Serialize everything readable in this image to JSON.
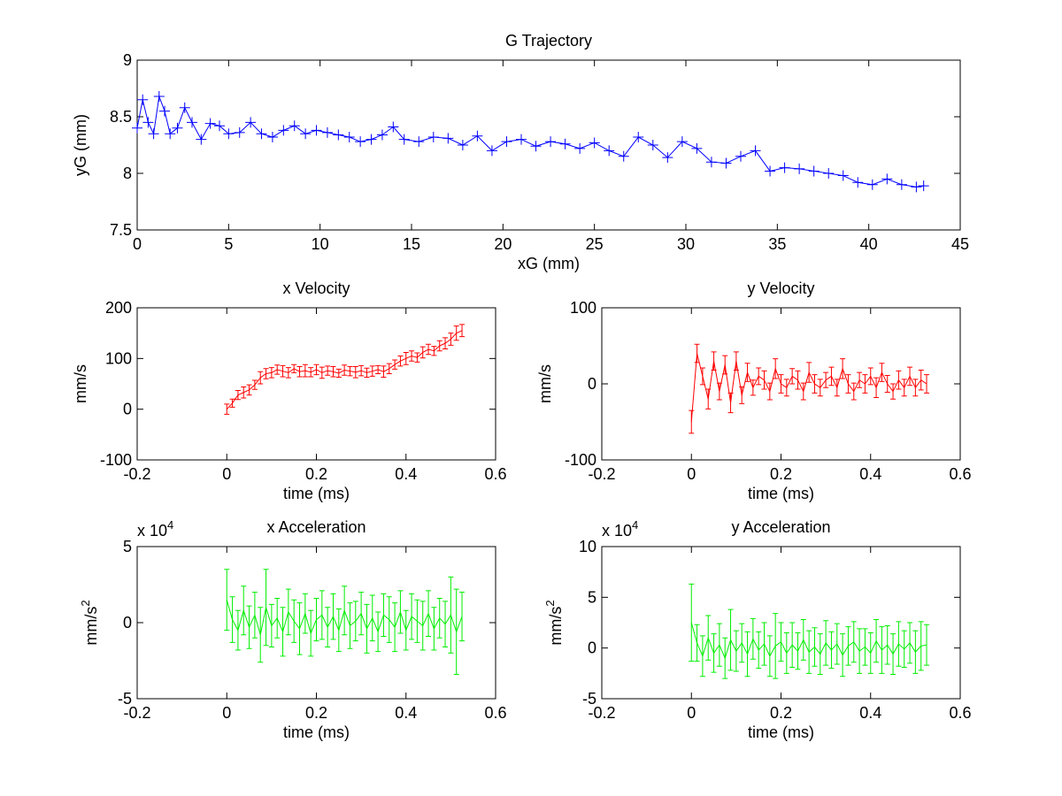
{
  "chart_data": [
    {
      "type": "line",
      "title": "G Trajectory",
      "xlabel": "xG (mm)",
      "ylabel": "yG (mm)",
      "marker": "+",
      "color": "#0000ff",
      "x": [
        0,
        0.3,
        0.6,
        0.9,
        1.2,
        1.5,
        1.8,
        2.2,
        2.6,
        3.0,
        3.5,
        4.0,
        4.5,
        5.0,
        5.6,
        6.2,
        6.8,
        7.4,
        8.0,
        8.6,
        9.2,
        9.8,
        10.4,
        11.0,
        11.6,
        12.2,
        12.8,
        13.4,
        14.0,
        14.6,
        15.4,
        16.2,
        17.0,
        17.8,
        18.6,
        19.4,
        20.2,
        21.0,
        21.8,
        22.6,
        23.4,
        24.2,
        25.0,
        25.8,
        26.6,
        27.4,
        28.2,
        29.0,
        29.8,
        30.6,
        31.4,
        32.2,
        33.0,
        33.8,
        34.6,
        35.4,
        36.2,
        37.0,
        37.8,
        38.6,
        39.4,
        40.2,
        41.0,
        41.8,
        42.6,
        43.0
      ],
      "values": [
        8.4,
        8.65,
        8.45,
        8.35,
        8.68,
        8.55,
        8.35,
        8.4,
        8.58,
        8.45,
        8.3,
        8.44,
        8.42,
        8.35,
        8.36,
        8.45,
        8.35,
        8.32,
        8.38,
        8.42,
        8.35,
        8.38,
        8.36,
        8.34,
        8.32,
        8.28,
        8.3,
        8.34,
        8.41,
        8.3,
        8.28,
        8.32,
        8.31,
        8.25,
        8.33,
        8.2,
        8.28,
        8.3,
        8.24,
        8.28,
        8.26,
        8.22,
        8.27,
        8.2,
        8.15,
        8.32,
        8.25,
        8.14,
        8.28,
        8.22,
        8.1,
        8.09,
        8.15,
        8.2,
        8.02,
        8.05,
        8.04,
        8.02,
        8.0,
        7.98,
        7.92,
        7.9,
        7.95,
        7.9,
        7.88,
        7.89
      ],
      "xlim": [
        0,
        45
      ],
      "xticks": [
        0,
        5,
        10,
        15,
        20,
        25,
        30,
        35,
        40,
        45
      ],
      "ylim": [
        7.5,
        9
      ],
      "yticks": [
        7.5,
        8,
        8.5,
        9
      ]
    },
    {
      "type": "errorbar",
      "title": "x Velocity",
      "xlabel": "time (ms)",
      "ylabel": "mm/s",
      "color": "#ff0000",
      "x": [
        0,
        0.0125,
        0.025,
        0.0375,
        0.05,
        0.0625,
        0.075,
        0.0875,
        0.1,
        0.1125,
        0.125,
        0.1375,
        0.15,
        0.1625,
        0.175,
        0.1875,
        0.2,
        0.2125,
        0.225,
        0.2375,
        0.25,
        0.2625,
        0.275,
        0.2875,
        0.3,
        0.3125,
        0.325,
        0.3375,
        0.35,
        0.3625,
        0.375,
        0.3875,
        0.4,
        0.4125,
        0.425,
        0.4375,
        0.45,
        0.4625,
        0.475,
        0.4875,
        0.5,
        0.5125,
        0.525
      ],
      "values": [
        0,
        12,
        28,
        33,
        38,
        48,
        62,
        70,
        72,
        78,
        75,
        72,
        80,
        74,
        76,
        73,
        78,
        72,
        76,
        74,
        71,
        77,
        75,
        73,
        76,
        72,
        75,
        78,
        74,
        80,
        88,
        95,
        100,
        105,
        102,
        112,
        118,
        115,
        125,
        130,
        138,
        150,
        155
      ],
      "errors": [
        10,
        8,
        9,
        11,
        10,
        9,
        12,
        10,
        10,
        9,
        11,
        10,
        8,
        10,
        12,
        9,
        10,
        11,
        9,
        10,
        8,
        10,
        9,
        11,
        10,
        9,
        10,
        8,
        11,
        10,
        9,
        10,
        12,
        10,
        9,
        11,
        10,
        9,
        10,
        11,
        12,
        14,
        12
      ],
      "xlim": [
        -0.2,
        0.6
      ],
      "xticks": [
        -0.2,
        0,
        0.2,
        0.4,
        0.6
      ],
      "ylim": [
        -100,
        200
      ],
      "yticks": [
        -100,
        0,
        100,
        200
      ]
    },
    {
      "type": "errorbar",
      "title": "y Velocity",
      "xlabel": "time (ms)",
      "ylabel": "mm/s",
      "color": "#ff0000",
      "x": [
        0,
        0.0125,
        0.025,
        0.0375,
        0.05,
        0.0625,
        0.075,
        0.0875,
        0.1,
        0.1125,
        0.125,
        0.1375,
        0.15,
        0.1625,
        0.175,
        0.1875,
        0.2,
        0.2125,
        0.225,
        0.2375,
        0.25,
        0.2625,
        0.275,
        0.2875,
        0.3,
        0.3125,
        0.325,
        0.3375,
        0.35,
        0.3625,
        0.375,
        0.3875,
        0.4,
        0.4125,
        0.425,
        0.4375,
        0.45,
        0.4625,
        0.475,
        0.4875,
        0.5,
        0.5125,
        0.525
      ],
      "values": [
        -50,
        40,
        10,
        -20,
        30,
        -10,
        25,
        -25,
        30,
        -15,
        15,
        -5,
        10,
        5,
        -10,
        20,
        0,
        -5,
        10,
        5,
        -10,
        15,
        0,
        -5,
        5,
        10,
        -5,
        20,
        0,
        -10,
        5,
        0,
        10,
        -5,
        15,
        0,
        -10,
        5,
        -5,
        10,
        -5,
        5,
        0
      ],
      "errors": [
        15,
        12,
        11,
        13,
        12,
        11,
        12,
        13,
        12,
        11,
        12,
        10,
        11,
        12,
        11,
        13,
        12,
        11,
        10,
        12,
        11,
        13,
        12,
        11,
        10,
        12,
        11,
        13,
        12,
        11,
        10,
        12,
        11,
        13,
        12,
        11,
        10,
        12,
        11,
        12,
        11,
        13,
        12
      ],
      "xlim": [
        -0.2,
        0.6
      ],
      "xticks": [
        -0.2,
        0,
        0.2,
        0.4,
        0.6
      ],
      "ylim": [
        -100,
        100
      ],
      "yticks": [
        -100,
        0,
        100
      ]
    },
    {
      "type": "errorbar",
      "title": "x Acceleration",
      "xlabel": "time (ms)",
      "ylabel": "mm/s",
      "ylabel_sup": "2",
      "scale_label": "x 10",
      "scale_exponent": "4",
      "color": "#00ee00",
      "x": [
        0,
        0.0125,
        0.025,
        0.0375,
        0.05,
        0.0625,
        0.075,
        0.0875,
        0.1,
        0.1125,
        0.125,
        0.1375,
        0.15,
        0.1625,
        0.175,
        0.1875,
        0.2,
        0.2125,
        0.225,
        0.2375,
        0.25,
        0.2625,
        0.275,
        0.2875,
        0.3,
        0.3125,
        0.325,
        0.3375,
        0.35,
        0.3625,
        0.375,
        0.3875,
        0.4,
        0.4125,
        0.425,
        0.4375,
        0.45,
        0.4625,
        0.475,
        0.4875,
        0.5,
        0.5125,
        0.525
      ],
      "values": [
        1.5,
        0.2,
        -0.5,
        0.8,
        -0.3,
        0.5,
        -0.8,
        1.0,
        -0.2,
        0.3,
        -0.6,
        0.7,
        0.1,
        -0.4,
        0.6,
        -0.7,
        0.2,
        0.5,
        -0.3,
        0.4,
        -0.5,
        0.8,
        -0.2,
        0.1,
        0.6,
        -0.4,
        0.3,
        -0.6,
        0.5,
        0.2,
        -0.3,
        0.7,
        -0.5,
        0.4,
        0.1,
        -0.2,
        0.6,
        -0.4,
        0.3,
        -0.1,
        0.5,
        -0.6,
        0.4
      ],
      "errors": [
        2.0,
        1.5,
        1.3,
        1.6,
        1.4,
        1.5,
        1.8,
        2.5,
        1.4,
        1.3,
        1.6,
        1.5,
        1.4,
        1.7,
        1.3,
        1.5,
        1.4,
        1.6,
        1.3,
        1.5,
        1.4,
        1.6,
        1.5,
        1.3,
        1.4,
        1.6,
        1.5,
        1.3,
        1.4,
        1.5,
        1.6,
        1.4,
        1.3,
        1.5,
        1.4,
        1.6,
        1.5,
        1.4,
        1.3,
        1.5,
        2.5,
        2.8,
        1.6
      ],
      "xlim": [
        -0.2,
        0.6
      ],
      "xticks": [
        -0.2,
        0,
        0.2,
        0.4,
        0.6
      ],
      "ylim": [
        -5,
        5
      ],
      "yticks": [
        -5,
        0,
        5
      ]
    },
    {
      "type": "errorbar",
      "title": "y Acceleration",
      "xlabel": "time (ms)",
      "ylabel": "mm/s",
      "ylabel_sup": "2",
      "scale_label": "x 10",
      "scale_exponent": "4",
      "color": "#00ee00",
      "x": [
        0,
        0.0125,
        0.025,
        0.0375,
        0.05,
        0.0625,
        0.075,
        0.0875,
        0.1,
        0.1125,
        0.125,
        0.1375,
        0.15,
        0.1625,
        0.175,
        0.1875,
        0.2,
        0.2125,
        0.225,
        0.2375,
        0.25,
        0.2625,
        0.275,
        0.2875,
        0.3,
        0.3125,
        0.325,
        0.3375,
        0.35,
        0.3625,
        0.375,
        0.3875,
        0.4,
        0.4125,
        0.425,
        0.4375,
        0.45,
        0.4625,
        0.475,
        0.4875,
        0.5,
        0.5125,
        0.525
      ],
      "values": [
        2.5,
        0.5,
        -0.8,
        1.0,
        -0.5,
        0.3,
        -1.0,
        0.8,
        -0.3,
        0.5,
        -0.6,
        0.9,
        -0.2,
        0.4,
        -0.8,
        0.2,
        0.6,
        -0.5,
        0.3,
        -0.3,
        0.8,
        -0.4,
        0.1,
        -0.6,
        0.5,
        -0.2,
        0.4,
        -0.7,
        0.2,
        0.6,
        -0.3,
        0.1,
        -0.5,
        0.7,
        -0.2,
        0.3,
        -0.6,
        0.4,
        -0.1,
        0.5,
        -0.4,
        0.2,
        0.3
      ],
      "errors": [
        3.8,
        1.8,
        2.0,
        2.2,
        1.9,
        2.1,
        2.0,
        3.0,
        2.0,
        1.9,
        2.2,
        2.0,
        1.8,
        2.1,
        2.0,
        3.2,
        1.9,
        2.0,
        2.2,
        1.8,
        2.0,
        2.1,
        1.9,
        2.0,
        2.2,
        1.8,
        2.0,
        2.1,
        1.9,
        2.0,
        2.2,
        1.8,
        2.0,
        2.1,
        2.3,
        1.9,
        2.0,
        2.2,
        1.8,
        2.0,
        2.1,
        2.4,
        2.0
      ],
      "xlim": [
        -0.2,
        0.6
      ],
      "xticks": [
        -0.2,
        0,
        0.2,
        0.4,
        0.6
      ],
      "ylim": [
        -5,
        10
      ],
      "yticks": [
        -5,
        0,
        5,
        10
      ]
    }
  ]
}
